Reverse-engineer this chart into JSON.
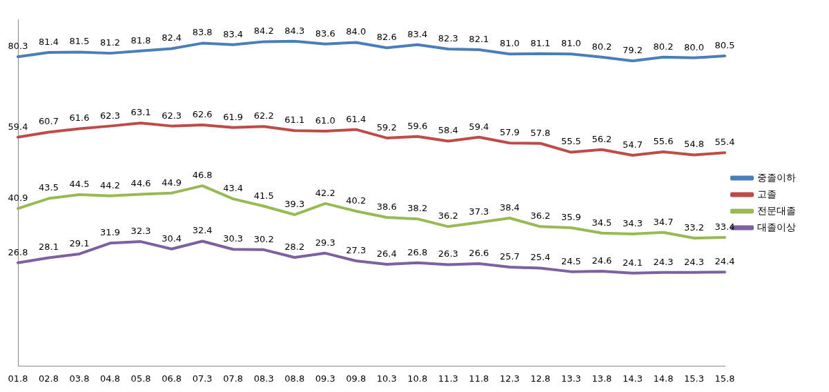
{
  "chart_data": {
    "type": "line",
    "categories": [
      "01.8",
      "02.8",
      "03.8",
      "04.8",
      "05.8",
      "06.8",
      "07.3",
      "07.8",
      "08.3",
      "08.8",
      "09.3",
      "09.8",
      "10.3",
      "10.8",
      "11.3",
      "11.8",
      "12.3",
      "12.8",
      "13.3",
      "13.8",
      "14.3",
      "14.8",
      "15.3",
      "15.8"
    ],
    "series": [
      {
        "name": "중졸이하",
        "color": "#4a7ebb",
        "values": [
          80.3,
          81.4,
          81.5,
          81.2,
          81.8,
          82.4,
          83.8,
          83.4,
          84.2,
          84.3,
          83.6,
          84.0,
          82.6,
          83.4,
          82.3,
          82.1,
          81.0,
          81.1,
          81.0,
          80.2,
          79.2,
          80.2,
          80.0,
          80.5
        ],
        "value_labels": [
          "80.3",
          "81.4",
          "81.5",
          "81.2",
          "81.8",
          "82.4",
          "83.8",
          "83.4",
          "84.2",
          "84.3",
          "83.6",
          "84.0",
          "82.6",
          "83.4",
          "82.3",
          "82.1",
          "81.0",
          "81.1",
          "81.0",
          "80.2",
          "79.2",
          "80.2",
          "80.0",
          "80.5"
        ]
      },
      {
        "name": "고졸",
        "color": "#be4b48",
        "values": [
          59.4,
          60.7,
          61.6,
          62.3,
          63.1,
          62.3,
          62.6,
          61.9,
          62.2,
          61.1,
          61.0,
          61.4,
          59.2,
          59.6,
          58.4,
          59.4,
          57.9,
          57.8,
          55.5,
          56.2,
          54.7,
          55.6,
          54.8,
          55.4
        ],
        "value_labels": [
          "59.4",
          "60.7",
          "61.6",
          "62.3",
          "63.1",
          "62.3",
          "62.6",
          "61.9",
          "62.2",
          "61.1",
          "61.0",
          "61.4",
          "59.2",
          "59.6",
          "58.4",
          "59.4",
          "57.9",
          "57.8",
          "55.5",
          "56.2",
          "54.7",
          "55.6",
          "54.8",
          "55.4"
        ]
      },
      {
        "name": "전문대졸",
        "color": "#98b954",
        "values": [
          40.9,
          43.5,
          44.5,
          44.2,
          44.6,
          44.9,
          46.8,
          43.4,
          41.5,
          39.3,
          42.2,
          40.2,
          38.6,
          38.2,
          36.2,
          37.3,
          38.4,
          36.2,
          35.9,
          34.5,
          34.3,
          34.7,
          33.2,
          33.4
        ],
        "value_labels": [
          "40.9",
          "43.5",
          "44.5",
          "44.2",
          "44.6",
          "44.9",
          "46.8",
          "43.4",
          "41.5",
          "39.3",
          "42.2",
          "40.2",
          "38.6",
          "38.2",
          "36.2",
          "37.3",
          "38.4",
          "36.2",
          "35.9",
          "34.5",
          "34.3",
          "34.7",
          "33.2",
          "33.4"
        ]
      },
      {
        "name": "대졸이상",
        "color": "#7d60a0",
        "values": [
          26.8,
          28.1,
          29.1,
          31.9,
          32.3,
          30.4,
          32.4,
          30.3,
          30.2,
          28.2,
          29.3,
          27.3,
          26.4,
          26.8,
          26.3,
          26.6,
          25.7,
          25.4,
          24.5,
          24.6,
          24.1,
          24.3,
          24.3,
          24.4
        ],
        "value_labels": [
          "26.8",
          "28.1",
          "29.1",
          "31.9",
          "32.3",
          "30.4",
          "32.4",
          "30.3",
          "30.2",
          "28.2",
          "29.3",
          "27.3",
          "26.4",
          "26.8",
          "26.3",
          "26.6",
          "25.7",
          "25.4",
          "24.5",
          "24.6",
          "24.1",
          "24.3",
          "24.3",
          "24.4"
        ]
      }
    ],
    "ylim": [
      0,
      90
    ],
    "tick_labels": "x",
    "legend": "right",
    "grid": false,
    "marker": "none",
    "line_style": "solid"
  }
}
